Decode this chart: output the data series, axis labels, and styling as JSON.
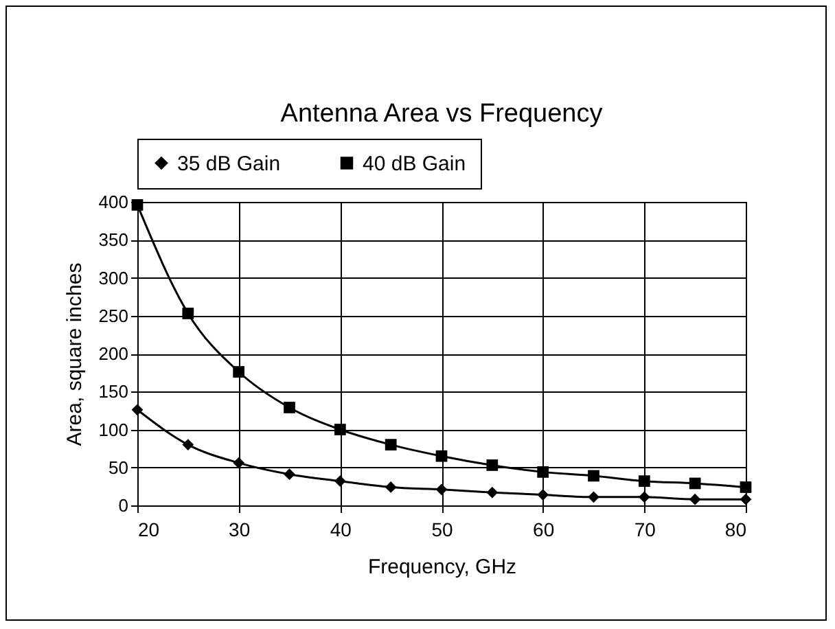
{
  "chart_data": {
    "type": "line",
    "title": "Antenna Area vs Frequency",
    "xlabel": "Frequency, GHz",
    "ylabel": "Area, square inches",
    "x": [
      20,
      25,
      30,
      35,
      40,
      45,
      50,
      55,
      60,
      65,
      70,
      75,
      80
    ],
    "series": [
      {
        "name": "35 dB Gain",
        "color": "#000000",
        "marker": "diamond",
        "values": [
          126,
          80,
          56,
          41,
          32,
          24,
          21,
          17,
          14,
          11,
          11,
          8,
          8
        ]
      },
      {
        "name": "40 dB Gain",
        "color": "#000000",
        "marker": "square",
        "values": [
          396,
          253,
          176,
          129,
          100,
          80,
          65,
          53,
          44,
          39,
          32,
          29,
          24
        ]
      }
    ],
    "xlim": [
      20,
      80
    ],
    "xticks": [
      20,
      30,
      40,
      50,
      60,
      70,
      80
    ],
    "ylim": [
      0,
      400
    ],
    "yticks": [
      0,
      50,
      100,
      150,
      200,
      250,
      300,
      350,
      400
    ],
    "grid": true,
    "legend": "top",
    "line_style": "solid"
  }
}
